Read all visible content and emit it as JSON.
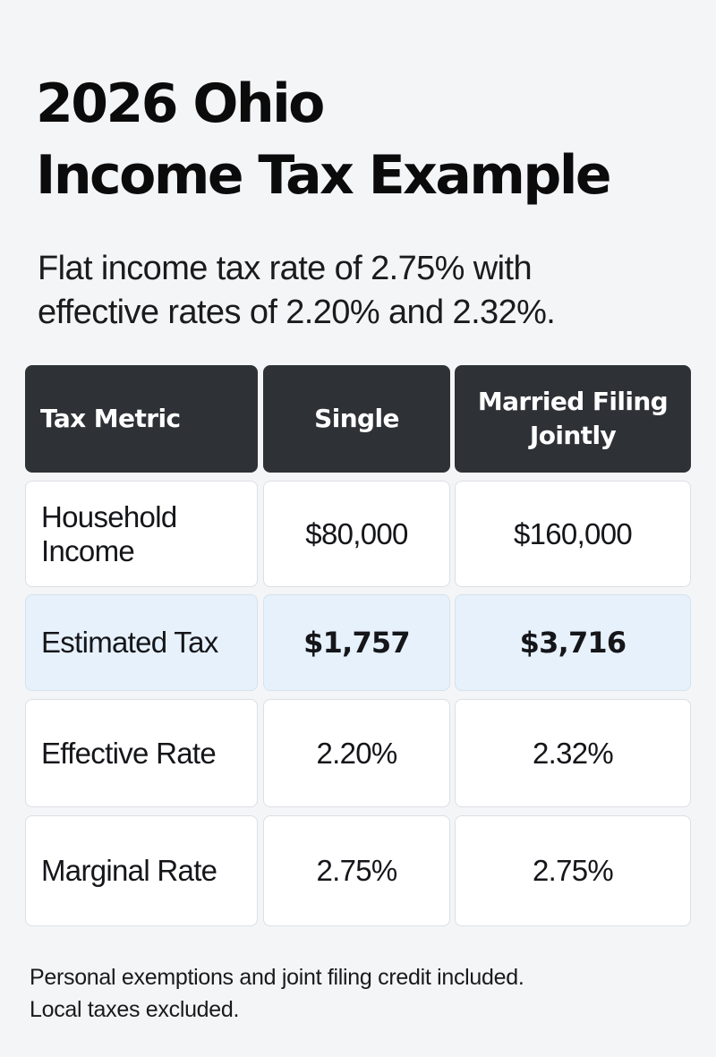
{
  "header": {
    "title_line1": "2026 Ohio",
    "title_line2": "Income Tax Example",
    "subtitle_line1": "Flat income tax rate of 2.75% with",
    "subtitle_line2": "effective rates of 2.20% and 2.32%."
  },
  "table": {
    "columns": [
      "Tax Metric",
      "Single",
      "Married Filing Jointly"
    ],
    "rows": [
      {
        "metric": "Household Income",
        "single": "$80,000",
        "married": "$160,000",
        "highlighted": false
      },
      {
        "metric": "Estimated Tax",
        "single": "$1,757",
        "married": "$3,716",
        "highlighted": true
      },
      {
        "metric": "Effective Rate",
        "single": "2.20%",
        "married": "2.32%",
        "highlighted": false
      },
      {
        "metric": "Marginal Rate",
        "single": "2.75%",
        "married": "2.75%",
        "highlighted": false
      }
    ]
  },
  "footnote": {
    "line1": "Personal exemptions and joint filing credit included.",
    "line2": "Local taxes excluded."
  },
  "colors": {
    "background": "#f4f5f7",
    "header_cell": "#2e3237",
    "highlight_cell": "#e7f1fb",
    "cell_border": "#dcdfe4"
  }
}
